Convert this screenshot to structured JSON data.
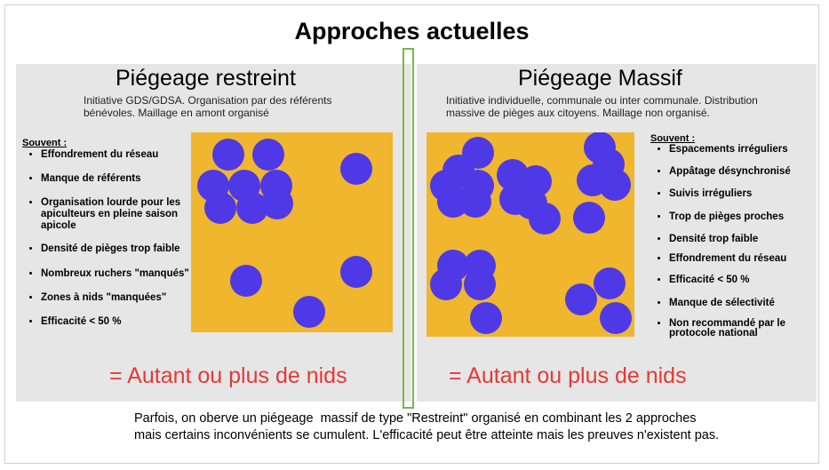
{
  "title": "Approches actuelles",
  "left": {
    "heading": "Piégeage restreint",
    "description_line1": "Initiative GDS/GDSA. Organisation par des référents",
    "description_line2": "bénévoles. Maillage en amont organisé",
    "souvent_label": "Souvent :",
    "items": [
      "Effondrement du réseau",
      "Manque de référents",
      "Organisation lourde pour les apiculteurs en pleine saison apicole",
      "Densité de pièges trop faible",
      "Nombreux ruchers \"manqués\"",
      "Zones à nids \"manquées\"",
      "Efficacité < 50 %"
    ],
    "result": "= Autant ou plus de nids"
  },
  "right": {
    "heading": "Piégeage Massif",
    "description_line1": "Initiative individuelle, communale ou inter communale. Distribution",
    "description_line2": "massive de pièges aux citoyens. Maillage non organisé.",
    "souvent_label": "Souvent :",
    "items": [
      "Espacements irréguliers",
      "Appâtage désynchronisé",
      "Suivis irréguliers",
      "Trop de pièges proches",
      "Densité trop faible",
      "Effondrement du réseau",
      "Efficacité < 50 %",
      "Manque de sélectivité",
      "Non recommandé par le protocole national"
    ],
    "result": "= Autant ou plus de nids"
  },
  "footer_line1": "Parfois, on oberve un piégeage  massif de type \"Restreint\" organisé en combinant les 2 approches",
  "footer_line2": "mais certains inconvénients se cumulent. L'efficacité peut être atteinte mais les preuves n'existent pas.",
  "colors": {
    "square": "#f0b62e",
    "trap": "#4f39e6",
    "result_text": "#e53935",
    "panel_bg": "#e6e6e6",
    "divider": "#7ab648"
  }
}
